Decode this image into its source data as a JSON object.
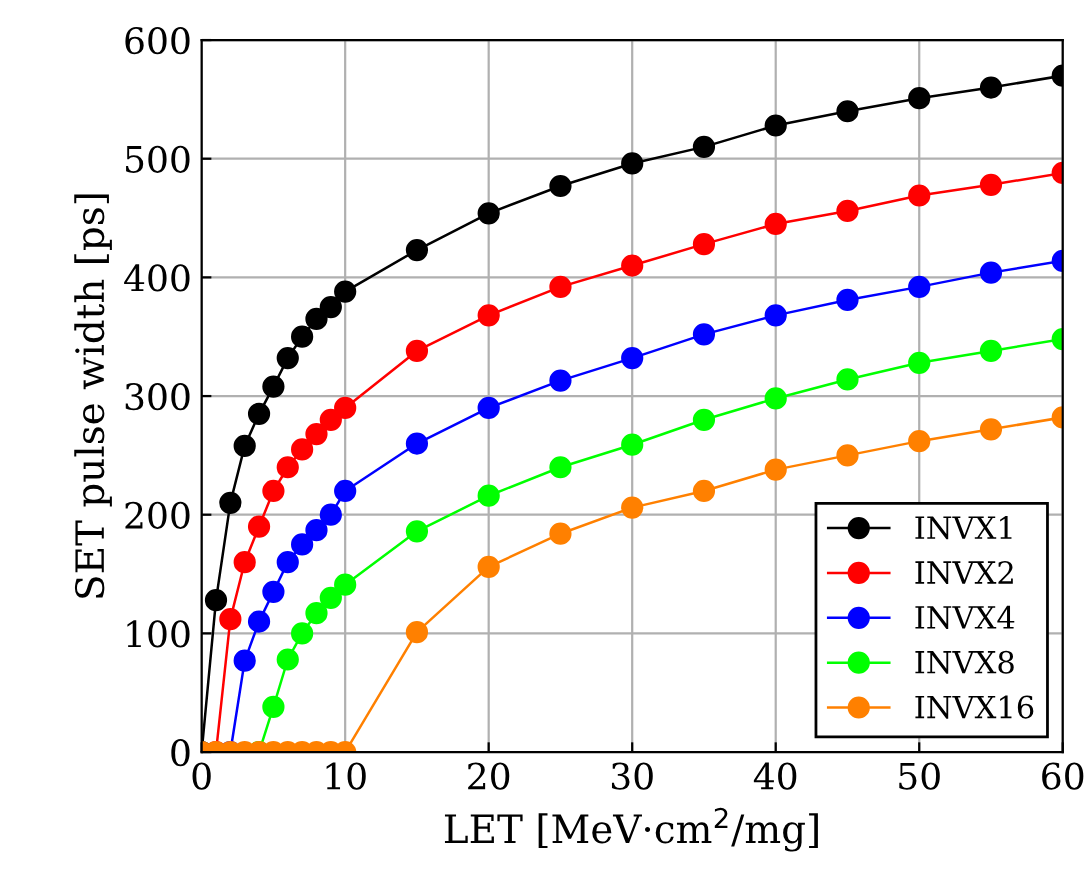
{
  "chart_data": {
    "type": "line",
    "xlabel": "LET [MeV·cm$^{2}$/mg]",
    "ylabel": "SET pulse width [ps]",
    "x": [
      0,
      1,
      2,
      3,
      4,
      5,
      6,
      7,
      8,
      9,
      10,
      15,
      20,
      25,
      30,
      35,
      40,
      45,
      50,
      55,
      60
    ],
    "series": [
      {
        "name": "INVX1",
        "color": "#000000",
        "values": [
          0,
          128,
          210,
          258,
          285,
          308,
          332,
          350,
          365,
          375,
          388,
          423,
          454,
          477,
          496,
          510,
          528,
          540,
          551,
          560,
          570
        ]
      },
      {
        "name": "INVX2",
        "color": "#ff0000",
        "values": [
          null,
          0,
          112,
          160,
          190,
          220,
          240,
          255,
          268,
          280,
          290,
          338,
          368,
          392,
          410,
          428,
          445,
          456,
          469,
          478,
          488
        ]
      },
      {
        "name": "INVX4",
        "color": "#0000ff",
        "values": [
          null,
          null,
          0,
          77,
          110,
          135,
          160,
          175,
          187,
          200,
          220,
          260,
          290,
          313,
          332,
          352,
          368,
          381,
          392,
          404,
          414
        ]
      },
      {
        "name": "INVX8",
        "color": "#00ff00",
        "values": [
          null,
          null,
          null,
          null,
          0,
          38,
          78,
          100,
          117,
          130,
          141,
          186,
          216,
          240,
          259,
          280,
          298,
          314,
          328,
          338,
          348
        ]
      },
      {
        "name": "INVX16",
        "color": "#ff8000",
        "values": [
          0,
          0,
          0,
          0,
          0,
          0,
          0,
          0,
          0,
          0,
          0,
          101,
          156,
          184,
          206,
          220,
          238,
          250,
          262,
          272,
          282
        ]
      }
    ],
    "xlim": [
      0,
      60
    ],
    "ylim": [
      0,
      600
    ],
    "xticks": [
      0,
      10,
      20,
      30,
      40,
      50,
      60
    ],
    "yticks": [
      0,
      100,
      200,
      300,
      400,
      500,
      600
    ],
    "grid": true,
    "legend": "bottom right",
    "marker": "circle",
    "line_style": "solid"
  }
}
